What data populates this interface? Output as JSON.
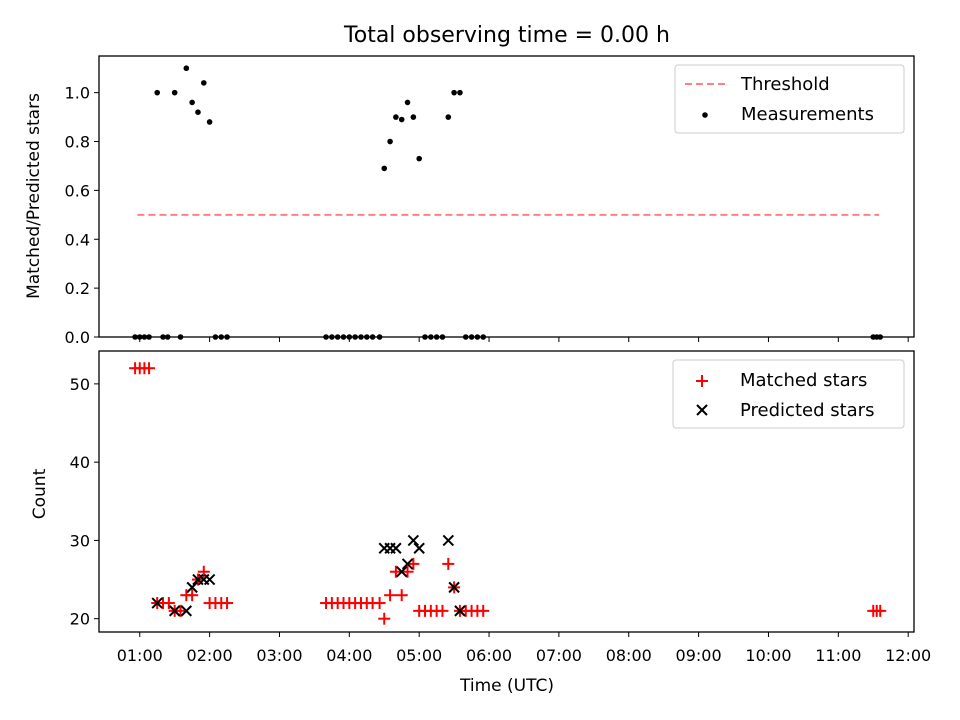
{
  "chart_data": [
    {
      "type": "scatter",
      "title": "Total observing time = 0.00 h",
      "xlabel": "",
      "ylabel": "Matched/Predicted stars",
      "xlim": [
        "00:25",
        "12:05"
      ],
      "ylim": [
        0,
        1.15
      ],
      "yticks": [
        0.0,
        0.2,
        0.4,
        0.6,
        0.8,
        1.0
      ],
      "ytick_labels": [
        "0.0",
        "0.2",
        "0.4",
        "0.6",
        "0.8",
        "1.0"
      ],
      "legend_position": "top-right",
      "grid": false,
      "series": [
        {
          "name": "Threshold",
          "kind": "dashed-line",
          "color": "#ff8080",
          "points": [
            [
              "00:58",
              0.5
            ],
            [
              "11:35",
              0.5
            ]
          ]
        },
        {
          "name": "Measurements",
          "kind": "dot",
          "color": "#000000",
          "points": [
            [
              "00:56",
              0
            ],
            [
              "01:00",
              0
            ],
            [
              "01:04",
              0
            ],
            [
              "01:08",
              0
            ],
            [
              "01:15",
              1.0
            ],
            [
              "01:20",
              0
            ],
            [
              "01:24",
              0
            ],
            [
              "01:30",
              1.0
            ],
            [
              "01:35",
              0
            ],
            [
              "01:40",
              1.1
            ],
            [
              "01:45",
              0.96
            ],
            [
              "01:50",
              0.92
            ],
            [
              "01:55",
              1.04
            ],
            [
              "02:00",
              0.88
            ],
            [
              "02:05",
              0
            ],
            [
              "02:10",
              0
            ],
            [
              "02:15",
              0
            ],
            [
              "03:40",
              0
            ],
            [
              "03:45",
              0
            ],
            [
              "03:50",
              0
            ],
            [
              "03:55",
              0
            ],
            [
              "04:00",
              0
            ],
            [
              "04:05",
              0
            ],
            [
              "04:10",
              0
            ],
            [
              "04:15",
              0
            ],
            [
              "04:20",
              0
            ],
            [
              "04:26",
              0
            ],
            [
              "04:30",
              0.69
            ],
            [
              "04:35",
              0.8
            ],
            [
              "04:40",
              0.9
            ],
            [
              "04:45",
              0.89
            ],
            [
              "04:50",
              0.96
            ],
            [
              "04:55",
              0.9
            ],
            [
              "05:00",
              0.73
            ],
            [
              "05:05",
              0
            ],
            [
              "05:10",
              0
            ],
            [
              "05:15",
              0
            ],
            [
              "05:20",
              0
            ],
            [
              "05:25",
              0.9
            ],
            [
              "05:30",
              1.0
            ],
            [
              "05:35",
              1.0
            ],
            [
              "05:40",
              0
            ],
            [
              "05:45",
              0
            ],
            [
              "05:50",
              0
            ],
            [
              "05:55",
              0
            ],
            [
              "11:30",
              0
            ],
            [
              "11:33",
              0
            ],
            [
              "11:36",
              0
            ]
          ]
        }
      ]
    },
    {
      "type": "scatter",
      "title": "",
      "xlabel": "Time (UTC)",
      "ylabel": "Count",
      "xlim": [
        "00:25",
        "12:05"
      ],
      "ylim": [
        18.3,
        54.2
      ],
      "yticks": [
        20,
        30,
        40,
        50
      ],
      "ytick_labels": [
        "20",
        "30",
        "40",
        "50"
      ],
      "xticks": [
        "01:00",
        "02:00",
        "03:00",
        "04:00",
        "05:00",
        "06:00",
        "07:00",
        "08:00",
        "09:00",
        "10:00",
        "11:00",
        "12:00"
      ],
      "legend_position": "top-right",
      "grid": false,
      "series": [
        {
          "name": "Matched stars",
          "kind": "plus",
          "color": "#ff0000",
          "points": [
            [
              "00:56",
              52
            ],
            [
              "01:00",
              52
            ],
            [
              "01:04",
              52
            ],
            [
              "01:08",
              52
            ],
            [
              "01:15",
              22
            ],
            [
              "01:20",
              22
            ],
            [
              "01:25",
              22
            ],
            [
              "01:30",
              21
            ],
            [
              "01:35",
              21
            ],
            [
              "01:40",
              23
            ],
            [
              "01:45",
              23
            ],
            [
              "01:50",
              25
            ],
            [
              "01:55",
              26
            ],
            [
              "02:00",
              22
            ],
            [
              "02:05",
              22
            ],
            [
              "02:10",
              22
            ],
            [
              "02:15",
              22
            ],
            [
              "03:40",
              22
            ],
            [
              "03:45",
              22
            ],
            [
              "03:50",
              22
            ],
            [
              "03:55",
              22
            ],
            [
              "04:00",
              22
            ],
            [
              "04:05",
              22
            ],
            [
              "04:10",
              22
            ],
            [
              "04:15",
              22
            ],
            [
              "04:20",
              22
            ],
            [
              "04:26",
              22
            ],
            [
              "04:30",
              20
            ],
            [
              "04:35",
              23
            ],
            [
              "04:40",
              26
            ],
            [
              "04:45",
              23
            ],
            [
              "04:50",
              26
            ],
            [
              "04:55",
              27
            ],
            [
              "05:00",
              21
            ],
            [
              "05:05",
              21
            ],
            [
              "05:10",
              21
            ],
            [
              "05:15",
              21
            ],
            [
              "05:20",
              21
            ],
            [
              "05:25",
              27
            ],
            [
              "05:30",
              24
            ],
            [
              "05:35",
              21
            ],
            [
              "05:40",
              21
            ],
            [
              "05:45",
              21
            ],
            [
              "05:50",
              21
            ],
            [
              "05:55",
              21
            ],
            [
              "11:30",
              21
            ],
            [
              "11:33",
              21
            ],
            [
              "11:36",
              21
            ]
          ]
        },
        {
          "name": "Predicted stars",
          "kind": "x",
          "color": "#000000",
          "points": [
            [
              "01:15",
              22
            ],
            [
              "01:30",
              21
            ],
            [
              "01:40",
              21
            ],
            [
              "01:45",
              24
            ],
            [
              "01:50",
              25
            ],
            [
              "01:55",
              25
            ],
            [
              "02:00",
              25
            ],
            [
              "04:30",
              29
            ],
            [
              "04:35",
              29
            ],
            [
              "04:40",
              29
            ],
            [
              "04:45",
              26
            ],
            [
              "04:50",
              27
            ],
            [
              "04:55",
              30
            ],
            [
              "05:00",
              29
            ],
            [
              "05:25",
              30
            ],
            [
              "05:30",
              24
            ],
            [
              "05:35",
              21
            ]
          ]
        }
      ]
    }
  ]
}
